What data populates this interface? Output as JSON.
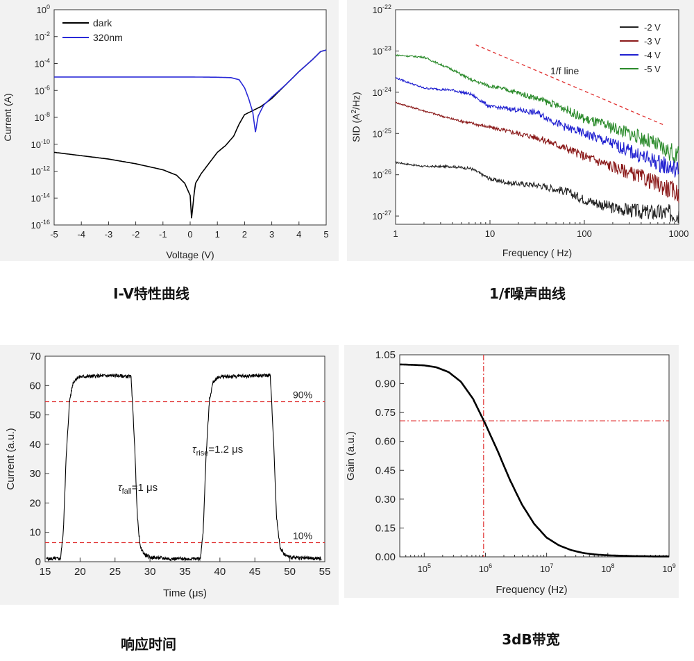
{
  "captions": {
    "iv": "I-V特性曲线",
    "noise": "1/f噪声曲线",
    "response": "响应时间",
    "bandwidth": "3dB带宽"
  },
  "colors": {
    "dark": "#000000",
    "uv": "#2a2ad8",
    "n2": "#222222",
    "n3": "#8b1a1a",
    "n4": "#1f1fd0",
    "n5": "#2a8a2a",
    "ref": "#e03030"
  },
  "chart_data": [
    {
      "id": "iv",
      "type": "line",
      "title": "",
      "xlabel": "Voltage (V)",
      "ylabel": "Current (A)",
      "xlim": [
        -5,
        5
      ],
      "ylim": [
        -16,
        0
      ],
      "yscale": "log",
      "x_ticks": [
        "-5",
        "-4",
        "-3",
        "-2",
        "-1",
        "0",
        "1",
        "2",
        "3",
        "4",
        "5"
      ],
      "y_tick_exponents": [
        "-16",
        "-14",
        "-12",
        "-10",
        "-8",
        "-6",
        "-4",
        "-2",
        "0"
      ],
      "legend_position": "top-left",
      "series": [
        {
          "name": "dark",
          "color": "#000000",
          "x": [
            -5,
            -4,
            -3,
            -2,
            -1,
            -0.5,
            -0.2,
            0.0,
            0.05,
            0.1,
            0.15,
            0.2,
            0.4,
            0.7,
            1.0,
            1.3,
            1.6,
            1.8,
            2.0,
            2.3,
            2.6,
            3.0,
            3.5,
            4.0,
            4.5,
            4.8,
            5.0
          ],
          "log10_y": [
            -10.6,
            -10.85,
            -11.1,
            -11.45,
            -11.9,
            -12.3,
            -12.9,
            -13.8,
            -15.5,
            -14.6,
            -13.6,
            -12.9,
            -12.2,
            -11.4,
            -10.6,
            -10.1,
            -9.4,
            -8.5,
            -7.8,
            -7.5,
            -7.2,
            -6.6,
            -5.6,
            -4.6,
            -3.7,
            -3.1,
            -3.0
          ]
        },
        {
          "name": "320nm",
          "color": "#2a2ad8",
          "x": [
            -5,
            -4,
            -3,
            -2,
            -1,
            0,
            1,
            1.5,
            1.8,
            2.0,
            2.15,
            2.3,
            2.4,
            2.5,
            2.7,
            3.0,
            3.5,
            4.0,
            4.5,
            4.8,
            5.0
          ],
          "log10_y": [
            -5.0,
            -5.0,
            -5.0,
            -5.0,
            -5.0,
            -5.0,
            -5.02,
            -5.05,
            -5.2,
            -5.8,
            -6.6,
            -7.6,
            -9.1,
            -7.9,
            -7.1,
            -6.5,
            -5.6,
            -4.6,
            -3.7,
            -3.1,
            -3.0
          ]
        }
      ]
    },
    {
      "id": "noise",
      "type": "line",
      "title": "",
      "xlabel": "Frequency ( Hz)",
      "ylabel": "SID (A²/Hz)",
      "ylabel_parts": [
        "SID (A",
        "2",
        "/Hz)"
      ],
      "xscale": "log",
      "yscale": "log",
      "xlim": [
        1,
        1000
      ],
      "ylim": [
        -27.2,
        -22
      ],
      "x_ticks": [
        "1",
        "10",
        "100",
        "1000"
      ],
      "y_tick_exponents": [
        "-27",
        "-26",
        "-25",
        "-24",
        "-23",
        "-22"
      ],
      "legend_position": "top-right",
      "annotation": "1/f line",
      "series": [
        {
          "name": "-2 V",
          "color": "#222222",
          "log10_f": [
            0,
            0.3,
            0.6,
            0.8,
            1.0,
            1.2,
            1.5,
            1.8,
            2.0,
            2.3,
            2.6,
            3.0
          ],
          "log10_y": [
            -25.7,
            -25.8,
            -25.8,
            -25.85,
            -26.1,
            -26.2,
            -26.25,
            -26.4,
            -26.6,
            -26.8,
            -26.9,
            -26.95
          ]
        },
        {
          "name": "-3 V",
          "color": "#8b1a1a",
          "log10_f": [
            0,
            0.3,
            0.6,
            0.8,
            1.0,
            1.2,
            1.5,
            1.8,
            2.0,
            2.3,
            2.6,
            3.0
          ],
          "log10_y": [
            -24.25,
            -24.45,
            -24.65,
            -24.75,
            -24.85,
            -24.95,
            -25.1,
            -25.35,
            -25.55,
            -25.8,
            -26.05,
            -26.45
          ]
        },
        {
          "name": "-4 V",
          "color": "#1f1fd0",
          "log10_f": [
            0,
            0.3,
            0.6,
            0.8,
            1.0,
            1.2,
            1.5,
            1.8,
            2.0,
            2.3,
            2.6,
            3.0
          ],
          "log10_y": [
            -23.65,
            -23.9,
            -23.95,
            -24.05,
            -24.35,
            -24.4,
            -24.5,
            -24.85,
            -25.0,
            -25.25,
            -25.55,
            -25.9
          ]
        },
        {
          "name": "-5 V",
          "color": "#2a8a2a",
          "log10_f": [
            0,
            0.3,
            0.6,
            0.8,
            1.0,
            1.2,
            1.5,
            1.8,
            2.0,
            2.3,
            2.6,
            3.0
          ],
          "log10_y": [
            -23.1,
            -23.15,
            -23.45,
            -23.7,
            -23.85,
            -23.95,
            -24.15,
            -24.4,
            -24.65,
            -24.85,
            -25.1,
            -25.55
          ]
        }
      ],
      "reference_line": {
        "log10_f": [
          0.85,
          2.85
        ],
        "log10_y": [
          -22.85,
          -24.8
        ]
      }
    },
    {
      "id": "response",
      "type": "line",
      "title": "",
      "xlabel": "Time (μs)",
      "ylabel": "Current (a.u.)",
      "xlim": [
        15,
        55
      ],
      "ylim": [
        0,
        70
      ],
      "x_ticks": [
        "15",
        "20",
        "25",
        "30",
        "35",
        "40",
        "45",
        "50",
        "55"
      ],
      "y_ticks": [
        "0",
        "10",
        "20",
        "30",
        "40",
        "50",
        "60",
        "70"
      ],
      "levels": [
        {
          "label": "90%",
          "value": 54.5
        },
        {
          "label": "10%",
          "value": 6.5
        }
      ],
      "annotations": [
        {
          "symbol": "τ",
          "subscript": "fall",
          "text": "=1 μs"
        },
        {
          "symbol": "τ",
          "subscript": "rise",
          "text": "=1.2 μs"
        }
      ],
      "series": [
        {
          "name": "",
          "color": "#000000",
          "x": [
            15.2,
            17.2,
            17.6,
            18.0,
            18.5,
            19.0,
            19.5,
            20,
            22,
            25,
            27.3,
            27.8,
            28.2,
            28.6,
            29.2,
            30,
            33,
            37.2,
            37.6,
            38.0,
            38.5,
            39.0,
            39.5,
            40,
            43,
            47.2,
            47.7,
            48.1,
            48.6,
            49.2,
            50,
            54.5
          ],
          "y": [
            1,
            1,
            10,
            35,
            55,
            61,
            62.5,
            63,
            63.2,
            63.4,
            63,
            40,
            15,
            5,
            2.5,
            1.5,
            1,
            1,
            10,
            35,
            55,
            61,
            62.5,
            63,
            63.2,
            63.5,
            40,
            15,
            5,
            2.5,
            1.5,
            1
          ]
        }
      ]
    },
    {
      "id": "bandwidth",
      "type": "line",
      "title": "",
      "xlabel": "Frequency (Hz)",
      "ylabel": "Gain (a.u.)",
      "xscale": "log",
      "xlim": [
        4.6,
        9
      ],
      "ylim": [
        0,
        1.05
      ],
      "x_tick_exponents": [
        "5",
        "6",
        "7",
        "8",
        "9"
      ],
      "y_ticks": [
        "0.00",
        "0.15",
        "0.30",
        "0.45",
        "0.60",
        "0.75",
        "0.90",
        "1.05"
      ],
      "cutoff_log10_f": 5.97,
      "cutoff_gain": 0.707,
      "series": [
        {
          "name": "",
          "color": "#000000",
          "log10_f": [
            4.6,
            4.8,
            5.0,
            5.2,
            5.4,
            5.6,
            5.8,
            6.0,
            6.2,
            6.4,
            6.6,
            6.8,
            7.0,
            7.2,
            7.4,
            7.6,
            7.8,
            8.0,
            8.4,
            8.8,
            9.0
          ],
          "y": [
            1.0,
            0.998,
            0.995,
            0.985,
            0.96,
            0.91,
            0.82,
            0.69,
            0.55,
            0.4,
            0.27,
            0.17,
            0.1,
            0.06,
            0.035,
            0.02,
            0.012,
            0.008,
            0.004,
            0.002,
            0.002
          ]
        }
      ]
    }
  ]
}
